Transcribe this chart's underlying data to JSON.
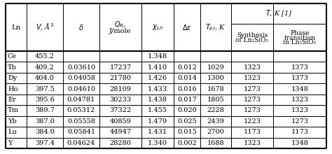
{
  "rows": [
    [
      "Ce",
      "455.2",
      "",
      "",
      "1.348",
      "",
      "",
      "",
      ""
    ],
    [
      "Tb",
      "409.2",
      "0.03610",
      "17237",
      "1.410",
      "0.012",
      "1029",
      "1323",
      "1373"
    ],
    [
      "Dy",
      "404.0",
      "0.04058",
      "21780",
      "1.426",
      "0.014",
      "1300",
      "1323",
      "1373"
    ],
    [
      "Ho",
      "397.5",
      "0.04610",
      "28109",
      "1.433",
      "0.016",
      "1678",
      "1273",
      "1348"
    ],
    [
      "Er",
      "395.6",
      "0.04781",
      "30233",
      "1.438",
      "0.017",
      "1805",
      "1273",
      "1323"
    ],
    [
      "Tm",
      "389.7",
      "0.05312",
      "37322",
      "1.455",
      "0.020",
      "2228",
      "1273",
      "1323"
    ],
    [
      "Yb",
      "387.0",
      "0.05558",
      "40859",
      "1.479",
      "0.025",
      "2439",
      "1223",
      "1273"
    ],
    [
      "Lu",
      "384.0",
      "0.05841",
      "44947",
      "1.431",
      "0.015",
      "2700",
      "1173",
      "1173"
    ],
    [
      "Y",
      "397.4",
      "0.04624",
      "28280",
      "1.340",
      "0.002",
      "1688",
      "1323",
      "1348"
    ]
  ],
  "font_size": 7.0,
  "background": "#ffffff"
}
